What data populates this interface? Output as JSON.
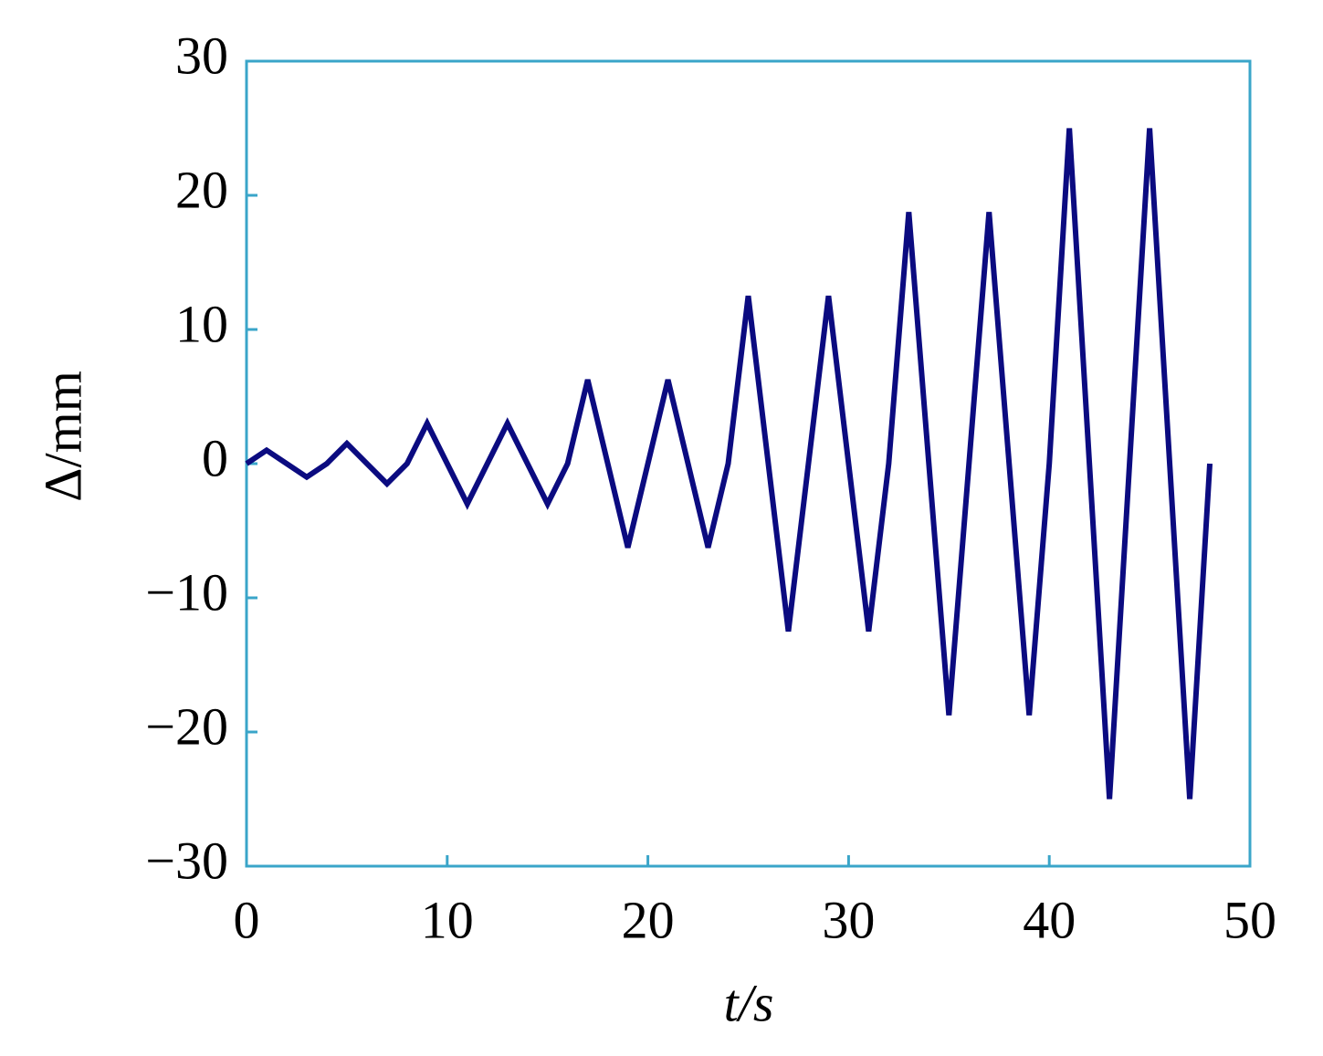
{
  "chart_data": {
    "type": "line",
    "x_label": "t/s",
    "y_label": "Δ/mm",
    "x": [
      0,
      1,
      3,
      4,
      5,
      7,
      8,
      9,
      11,
      13,
      15,
      16,
      17,
      19,
      21,
      23,
      24,
      25,
      27,
      29,
      31,
      32,
      33,
      35,
      37,
      39,
      40,
      41,
      43,
      45,
      47,
      48
    ],
    "series": [
      {
        "color": "#0b0b80",
        "values": [
          0,
          1,
          -1,
          0,
          1.5,
          -1.5,
          0,
          3,
          -3,
          3,
          -3,
          0,
          6.25,
          -6.25,
          6.25,
          -6.25,
          0,
          12.5,
          -12.5,
          12.5,
          -12.5,
          0,
          18.75,
          -18.75,
          18.75,
          -18.75,
          0,
          25,
          -25,
          25,
          -25,
          0
        ]
      }
    ],
    "xlim": [
      0,
      50
    ],
    "xticks": [
      0,
      10,
      20,
      30,
      40,
      50
    ],
    "ylim": [
      -30,
      30
    ],
    "yticks": [
      {
        "value": -30,
        "label": "−30"
      },
      {
        "value": -20,
        "label": "−20"
      },
      {
        "value": -10,
        "label": "−10"
      },
      0,
      10,
      20,
      30
    ],
    "frame_color": "#3aa5c9",
    "grid": false
  }
}
